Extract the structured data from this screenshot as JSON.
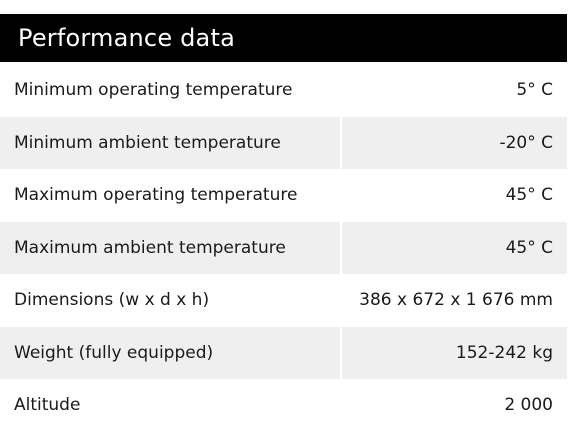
{
  "header": {
    "title": "Performance data"
  },
  "colors": {
    "header_bg": "#000000",
    "header_text": "#ffffff",
    "row_alt_bg": "#efefef",
    "text": "#1a1a1a"
  },
  "rows": [
    {
      "label": "Minimum operating temperature",
      "value": "5° C"
    },
    {
      "label": "Minimum ambient temperature",
      "value": "-20° C"
    },
    {
      "label": "Maximum operating temperature",
      "value": "45° C"
    },
    {
      "label": "Maximum ambient temperature",
      "value": "45° C"
    },
    {
      "label": "Dimensions (w x d x h)",
      "value": "386 x 672 x 1 676 mm"
    },
    {
      "label": "Weight (fully equipped)",
      "value": "152-242 kg"
    },
    {
      "label": "Altitude",
      "value": "2 000"
    }
  ]
}
